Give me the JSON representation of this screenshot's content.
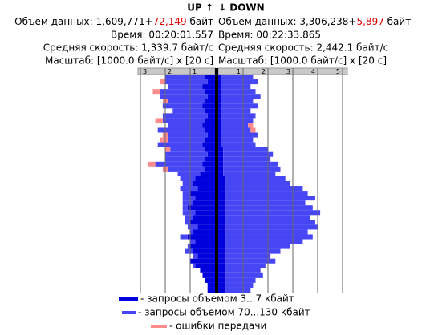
{
  "header": {
    "up": {
      "volume_prefix": "Объем данных: 1,609,771+",
      "volume_extra": "72,149",
      "volume_suffix": " байт",
      "time": "Время: 00:20:01.557",
      "speed": "Средняя скорость: 1,339.7 байт/с",
      "scale": "Масштаб: [1000.0 байт/с] x [20 с]"
    },
    "down": {
      "volume_prefix": "Объем данных: 3,306,238+",
      "volume_extra": "5,897",
      "volume_suffix": " байт",
      "time": "Время: 00:22:33.865",
      "speed": "Средняя скорость: 2,442.1 байт/с",
      "scale": "Масштаб: [1000.0 байт/с] x [20 с]"
    }
  },
  "chart_data": [
    {
      "type": "bar",
      "orientation": "horizontal",
      "stacked": true,
      "title": "UP ↑",
      "xlim": [
        0,
        3.1
      ],
      "xticks": [
        1,
        2,
        3
      ],
      "series": [
        {
          "name": "- запросы объемом 3...7 кбайт",
          "color": "#0000dd",
          "values": [
            0.4,
            0.3,
            0.5,
            0.4,
            0.3,
            0.4,
            0.5,
            0.4,
            0.3,
            0.4,
            0.5,
            0.4,
            0.3,
            0.4,
            0.5,
            0.4,
            0.3,
            0.4,
            0.5,
            0.4,
            0.6,
            0.8,
            0.9,
            0.7,
            1.0,
            0.8,
            0.9,
            1.1,
            0.8,
            0.9,
            1.0,
            0.7,
            0.9,
            1.1,
            0.8,
            1.0,
            0.9,
            0.7,
            1.0,
            0.8,
            0.6,
            0.5,
            0.4,
            0.3,
            0.3
          ]
        },
        {
          "name": "- запросы объемом 70...130 кбайт",
          "color": "#4646f5",
          "values": [
            1.6,
            1.7,
            1.4,
            1.8,
            1.9,
            1.5,
            1.6,
            1.3,
            1.8,
            1.7,
            1.4,
            1.9,
            1.6,
            1.5,
            1.8,
            1.4,
            1.7,
            1.6,
            1.9,
            1.5,
            0.9,
            0.6,
            0.4,
            0.7,
            0.3,
            0.5,
            0.4,
            0.2,
            0.5,
            0.3,
            0.2,
            0.4,
            0.1,
            0.3,
            0.2,
            0.1,
            0.3,
            0.2,
            0,
            0.1,
            0,
            0,
            0,
            0,
            0
          ]
        },
        {
          "name": "- ошибки передачи",
          "color": "#ff8c8c",
          "values": [
            0,
            0.2,
            0,
            0.3,
            0,
            0.2,
            0,
            0,
            0,
            0.3,
            0,
            0,
            0.2,
            0.3,
            0,
            0.2,
            0,
            0,
            0.3,
            0.2,
            0,
            0,
            0,
            0,
            0,
            0,
            0,
            0,
            0,
            0,
            0,
            0,
            0,
            0,
            0,
            0,
            0,
            0,
            0,
            0,
            0,
            0,
            0,
            0,
            0
          ]
        }
      ]
    },
    {
      "type": "bar",
      "orientation": "horizontal",
      "stacked": true,
      "title": "↓ DOWN",
      "xlim": [
        0,
        5.2
      ],
      "xticks": [
        1,
        2,
        3,
        4,
        5
      ],
      "series": [
        {
          "color": "#0000dd",
          "values": [
            0.1,
            0.1,
            0.1,
            0.1,
            0.1,
            0.1,
            0.1,
            0.1,
            0.1,
            0.1,
            0.1,
            0.1,
            0.1,
            0.1,
            0.1,
            0.2,
            0.2,
            0.2,
            0.2,
            0.2,
            0.2,
            0.3,
            0.3,
            0.3,
            0.3,
            0.3,
            0.3,
            0.3,
            0.3,
            0.3,
            0.3,
            0.3,
            0.3,
            0.3,
            0.3,
            0.3,
            0.3,
            0.3,
            0.3,
            0.3,
            0.3,
            0.3,
            0.3,
            0.3,
            0.3
          ]
        },
        {
          "color": "#4646f5",
          "values": [
            1.3,
            1.5,
            1.2,
            1.4,
            1.6,
            1.3,
            1.5,
            1.2,
            1.4,
            1.3,
            1.1,
            1.2,
            1.5,
            1.3,
            1.4,
            1.8,
            2.0,
            1.9,
            2.2,
            2.3,
            2.1,
            2.4,
            2.6,
            3.1,
            3.3,
            3.6,
            3.2,
            3.5,
            3.8,
            3.4,
            3.6,
            3.7,
            3.3,
            3.5,
            3.1,
            2.6,
            2.2,
            1.8,
            2.0,
            1.6,
            1.4,
            1.5,
            1.2,
            1.1,
            1.0
          ]
        },
        {
          "color": "#ff8c8c",
          "values": [
            0,
            0,
            0,
            0,
            0,
            0,
            0,
            0,
            0,
            0,
            0.2,
            0.2,
            0,
            0,
            0,
            0,
            0,
            0,
            0,
            0,
            0,
            0,
            0,
            0,
            0,
            0,
            0,
            0,
            0,
            0,
            0,
            0,
            0,
            0,
            0,
            0,
            0,
            0,
            0,
            0,
            0,
            0,
            0,
            0,
            0
          ]
        }
      ]
    }
  ]
}
